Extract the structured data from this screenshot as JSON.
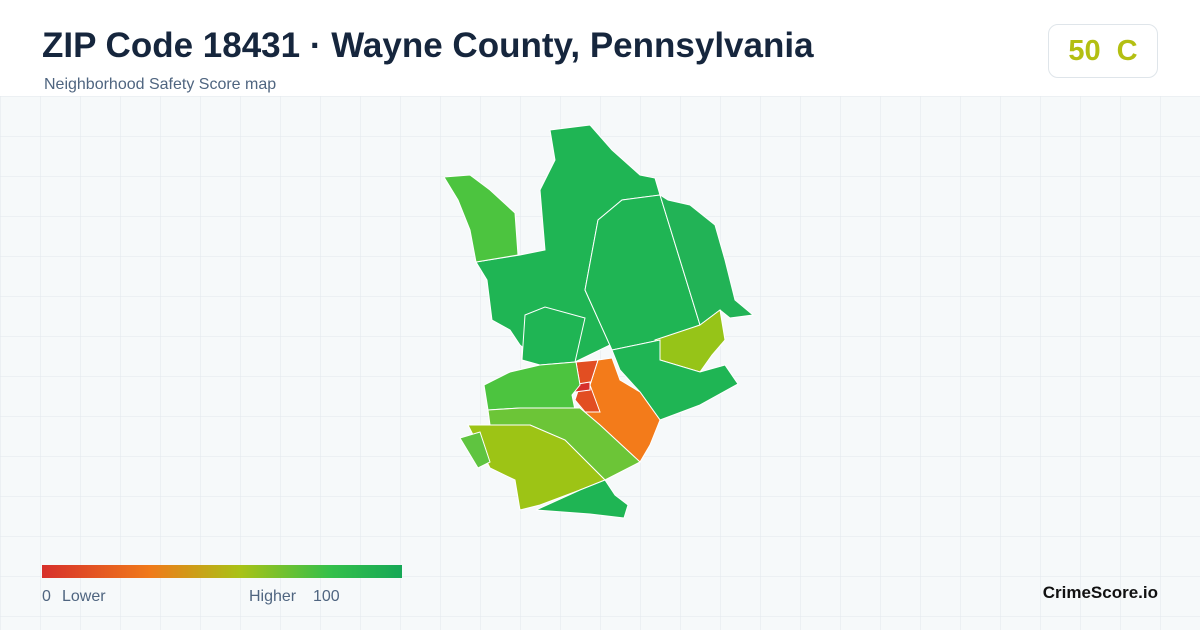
{
  "header": {
    "title": "ZIP Code 18431 · Wayne County, Pennsylvania",
    "subtitle": "Neighborhood Safety Score map"
  },
  "score": {
    "value": 50,
    "grade": "C"
  },
  "legend": {
    "min": 0,
    "min_label": "Lower",
    "max_label": "Higher",
    "max": 100
  },
  "brand": "CrimeScore.io"
}
